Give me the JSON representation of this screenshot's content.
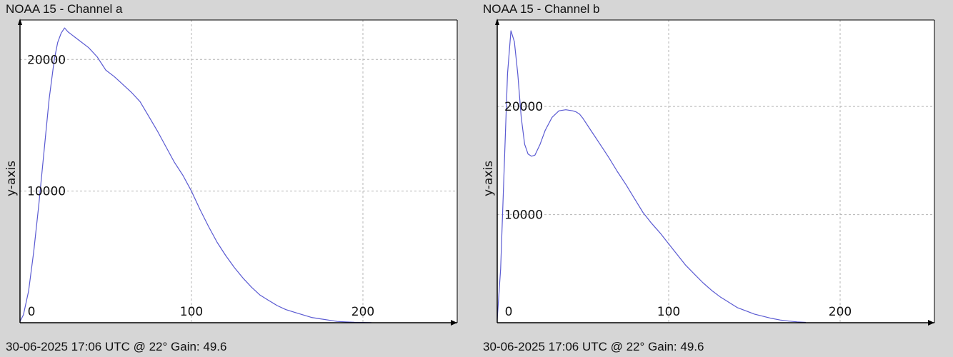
{
  "colors": {
    "background": "#d6d6d6",
    "plot_background": "#ffffff",
    "series_line": "#5a5ad2",
    "grid": "#b4b4b4",
    "axis": "#000000"
  },
  "chart_data": [
    {
      "type": "line",
      "title": "NOAA 15 - Channel a",
      "footer": "30-06-2025 17:06 UTC @ 22° Gain: 49.6",
      "xlabel": "",
      "ylabel": "y-axis",
      "xlim": [
        0,
        255
      ],
      "ylim": [
        0,
        23000
      ],
      "xticks": [
        0,
        100,
        200
      ],
      "yticks": [
        10000,
        20000
      ],
      "xtick_labels": [
        "0",
        "100",
        "200"
      ],
      "ytick_labels": [
        "10000",
        "20000"
      ],
      "grid": true,
      "series": [
        {
          "x": [
            0,
            2,
            5,
            8,
            11,
            14,
            17,
            20,
            22,
            24,
            26,
            28,
            30,
            32,
            35,
            40,
            45,
            47,
            50,
            55,
            60,
            65,
            70,
            75,
            80,
            85,
            90,
            95,
            100,
            105,
            110,
            115,
            120,
            125,
            130,
            135,
            140,
            145,
            150,
            155,
            160,
            165,
            170,
            175,
            180,
            185,
            190,
            195,
            200,
            205
          ],
          "y": [
            100,
            600,
            2400,
            5400,
            9000,
            13000,
            17000,
            20000,
            21300,
            22000,
            22400,
            22100,
            21900,
            21700,
            21400,
            20900,
            20200,
            19800,
            19200,
            18700,
            18100,
            17500,
            16800,
            15700,
            14600,
            13400,
            12200,
            11200,
            10000,
            8600,
            7300,
            6100,
            5100,
            4200,
            3400,
            2700,
            2100,
            1700,
            1300,
            1000,
            800,
            600,
            400,
            300,
            200,
            100,
            60,
            30,
            20,
            10
          ]
        }
      ]
    },
    {
      "type": "line",
      "title": "NOAA 15 - Channel b",
      "footer": "30-06-2025 17:06 UTC @ 22° Gain: 49.6",
      "xlabel": "",
      "ylabel": "y-axis",
      "xlim": [
        0,
        255
      ],
      "ylim": [
        0,
        28000
      ],
      "xticks": [
        0,
        100,
        200
      ],
      "yticks": [
        10000,
        20000
      ],
      "xtick_labels": [
        "0",
        "100",
        "200"
      ],
      "ytick_labels": [
        "10000",
        "20000"
      ],
      "grid": true,
      "series": [
        {
          "x": [
            0,
            2,
            4,
            6,
            8,
            10,
            12,
            14,
            16,
            18,
            20,
            22,
            25,
            28,
            32,
            36,
            40,
            44,
            46,
            48,
            50,
            55,
            60,
            65,
            70,
            75,
            80,
            85,
            90,
            95,
            100,
            105,
            110,
            115,
            120,
            125,
            130,
            135,
            140,
            145,
            150,
            155,
            160,
            165,
            170,
            175,
            180
          ],
          "y": [
            300,
            5000,
            14000,
            23000,
            27000,
            26000,
            23000,
            19000,
            16500,
            15600,
            15400,
            15500,
            16500,
            17800,
            19000,
            19600,
            19700,
            19600,
            19500,
            19300,
            18900,
            17700,
            16500,
            15300,
            14000,
            12800,
            11500,
            10200,
            9200,
            8300,
            7300,
            6300,
            5300,
            4500,
            3700,
            3000,
            2400,
            1900,
            1400,
            1100,
            800,
            600,
            400,
            250,
            150,
            80,
            30
          ]
        }
      ]
    }
  ]
}
